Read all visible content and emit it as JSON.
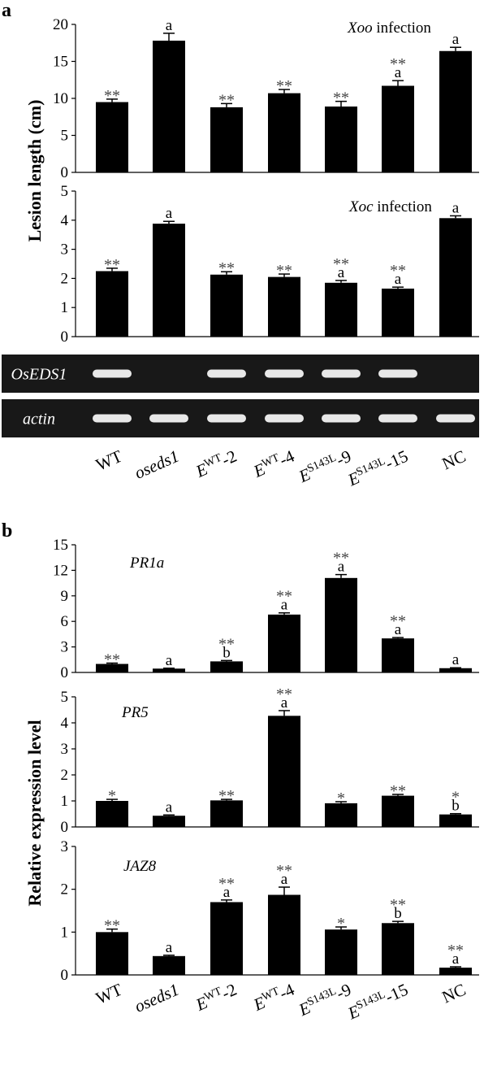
{
  "panel_letters": {
    "a": "a",
    "b": "b"
  },
  "chart_data": [
    {
      "type": "bar",
      "panel": "a",
      "annotation": {
        "italic": "Xoo",
        "rest": " infection"
      },
      "ylabel": "Lesion length (cm)",
      "categories": [
        "WT",
        "oseds1",
        "EWT-2",
        "EWT-4",
        "ES143L-9",
        "ES143L-15",
        "NC"
      ],
      "ylim": [
        0,
        20
      ],
      "yticks": [
        0,
        5,
        10,
        15,
        20
      ],
      "values": [
        9.5,
        17.8,
        8.8,
        10.7,
        8.9,
        11.7,
        16.4
      ],
      "errors": [
        0.4,
        1.0,
        0.5,
        0.5,
        0.7,
        0.7,
        0.5
      ],
      "stars": [
        "**",
        "",
        "**",
        "**",
        "**",
        "**",
        ""
      ],
      "letters": [
        "",
        "a",
        "",
        "",
        "",
        "a",
        "a"
      ]
    },
    {
      "type": "bar",
      "panel": "a",
      "annotation": {
        "italic": "Xoc",
        "rest": " infection"
      },
      "categories": [
        "WT",
        "oseds1",
        "EWT-2",
        "EWT-4",
        "ES143L-9",
        "ES143L-15",
        "NC"
      ],
      "ylim": [
        0,
        5
      ],
      "yticks": [
        0,
        1,
        2,
        3,
        4,
        5
      ],
      "values": [
        2.25,
        3.88,
        2.13,
        2.05,
        1.85,
        1.65,
        4.07
      ],
      "errors": [
        0.1,
        0.08,
        0.1,
        0.1,
        0.08,
        0.05,
        0.08
      ],
      "stars": [
        "**",
        "",
        "**",
        "**",
        "**",
        "**",
        ""
      ],
      "letters": [
        "",
        "a",
        "",
        "",
        "a",
        "a",
        "a"
      ]
    },
    {
      "type": "bar",
      "panel": "b",
      "annotation": {
        "italic": "PR1a",
        "rest": ""
      },
      "ylabel": "Relative expression level",
      "categories": [
        "WT",
        "oseds1",
        "EWT-2",
        "EWT-4",
        "ES143L-9",
        "ES143L-15",
        "NC"
      ],
      "ylim": [
        0,
        15
      ],
      "yticks": [
        0,
        3,
        6,
        9,
        12,
        15
      ],
      "values": [
        1.0,
        0.45,
        1.3,
        6.8,
        11.1,
        4.0,
        0.5
      ],
      "errors": [
        0.1,
        0.05,
        0.1,
        0.2,
        0.4,
        0.1,
        0.05
      ],
      "stars": [
        "**",
        "",
        "**",
        "**",
        "**",
        "**",
        ""
      ],
      "letters": [
        "",
        "a",
        "b",
        "a",
        "a",
        "a",
        "a"
      ]
    },
    {
      "type": "bar",
      "panel": "b",
      "annotation": {
        "italic": "PR5",
        "rest": ""
      },
      "categories": [
        "WT",
        "oseds1",
        "EWT-2",
        "EWT-4",
        "ES143L-9",
        "ES143L-15",
        "NC"
      ],
      "ylim": [
        0,
        5
      ],
      "yticks": [
        0,
        1,
        2,
        3,
        4,
        5
      ],
      "values": [
        1.0,
        0.43,
        1.02,
        4.27,
        0.91,
        1.2,
        0.48
      ],
      "errors": [
        0.06,
        0.03,
        0.04,
        0.2,
        0.06,
        0.05,
        0.03
      ],
      "stars": [
        "*",
        "",
        "**",
        "**",
        "*",
        "**",
        "*"
      ],
      "letters": [
        "",
        "a",
        "",
        "a",
        "",
        "",
        "b"
      ]
    },
    {
      "type": "bar",
      "panel": "b",
      "annotation": {
        "italic": "JAZ8",
        "rest": ""
      },
      "categories": [
        "WT",
        "oseds1",
        "EWT-2",
        "EWT-4",
        "ES143L-9",
        "ES143L-15",
        "NC"
      ],
      "ylim": [
        0,
        3
      ],
      "yticks": [
        0,
        1,
        2,
        3
      ],
      "values": [
        1.0,
        0.44,
        1.7,
        1.87,
        1.06,
        1.21,
        0.17
      ],
      "errors": [
        0.07,
        0.02,
        0.05,
        0.18,
        0.06,
        0.04,
        0.02
      ],
      "stars": [
        "**",
        "",
        "**",
        "**",
        "*",
        "**",
        "**"
      ],
      "letters": [
        "",
        "a",
        "a",
        "a",
        "",
        "b",
        "a"
      ]
    }
  ],
  "gel": {
    "rows": [
      {
        "label": "OsEDS1",
        "bands": [
          true,
          false,
          true,
          true,
          true,
          true,
          false
        ]
      },
      {
        "label": "actin",
        "bands": [
          true,
          true,
          true,
          true,
          true,
          true,
          true
        ]
      }
    ]
  },
  "category_labels": [
    {
      "italic": false,
      "base": "WT",
      "sup": "",
      "suffix": ""
    },
    {
      "italic": true,
      "base": "oseds1",
      "sup": "",
      "suffix": ""
    },
    {
      "italic": true,
      "base": "E",
      "sup": "WT",
      "suffix": "-2"
    },
    {
      "italic": true,
      "base": "E",
      "sup": "WT",
      "suffix": "-4"
    },
    {
      "italic": true,
      "base": "E",
      "sup": "S143L",
      "suffix": "-9"
    },
    {
      "italic": true,
      "base": "E",
      "sup": "S143L",
      "suffix": "-15"
    },
    {
      "italic": false,
      "base": "NC",
      "sup": "",
      "suffix": ""
    }
  ],
  "colors": {
    "bar": "#000000",
    "axis": "#000000",
    "gel_background": "#181818",
    "gel_band": "#e8e8e8"
  }
}
